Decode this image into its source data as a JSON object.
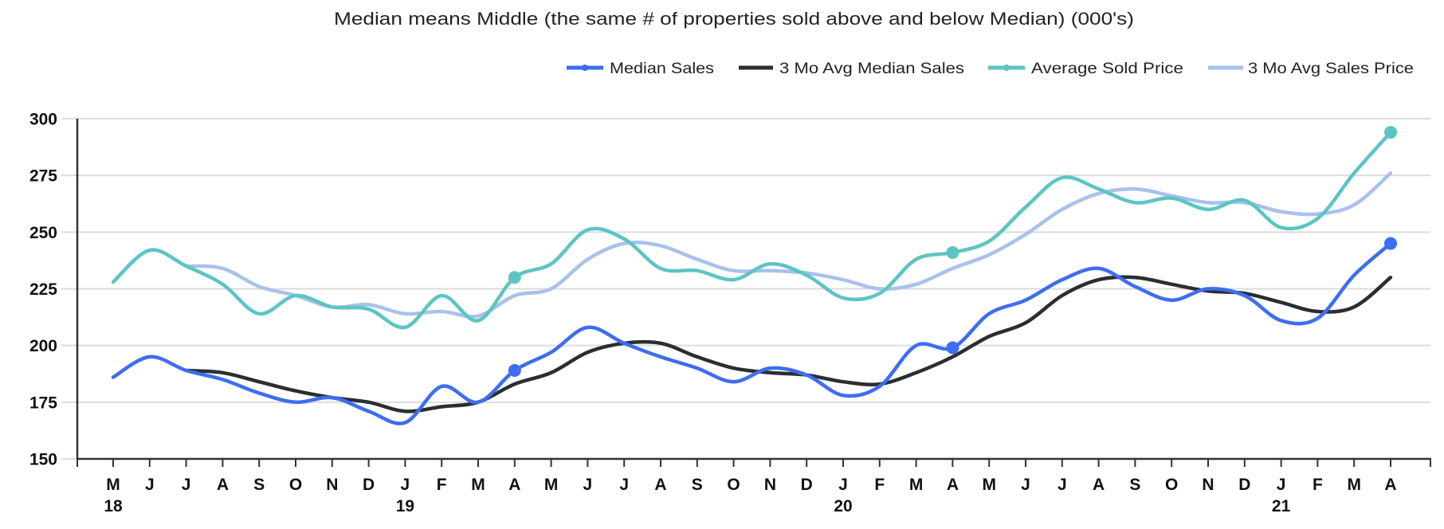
{
  "chart_data": {
    "type": "line",
    "title": "Median means Middle (the same # of properties sold above and below Median) (000's)",
    "xlabel": "",
    "ylabel": "",
    "ylim": [
      150,
      300
    ],
    "yticks": [
      "150",
      "175",
      "200",
      "225",
      "250",
      "275",
      "300"
    ],
    "grid": true,
    "legend_position": "top-right",
    "categories": [
      "M",
      "J",
      "J",
      "A",
      "S",
      "O",
      "N",
      "D",
      "J",
      "F",
      "M",
      "A",
      "M",
      "J",
      "J",
      "A",
      "S",
      "O",
      "N",
      "D",
      "J",
      "F",
      "M",
      "A",
      "M",
      "J",
      "J",
      "A",
      "S",
      "O",
      "N",
      "D",
      "J",
      "F",
      "M",
      "A"
    ],
    "year_labels": [
      {
        "index": 0,
        "label": "18"
      },
      {
        "index": 8,
        "label": "19"
      },
      {
        "index": 20,
        "label": "20"
      },
      {
        "index": 32,
        "label": "21"
      }
    ],
    "series": [
      {
        "name": "Median Sales",
        "color": "#3d6df2",
        "legend_marker": true,
        "marker_indices": [
          11,
          23,
          35
        ],
        "values": [
          186,
          195,
          189,
          185,
          179,
          175,
          177,
          171,
          166,
          182,
          175,
          189,
          197,
          208,
          201,
          195,
          190,
          184,
          190,
          187,
          178,
          182,
          200,
          199,
          214,
          220,
          229,
          234,
          226,
          220,
          225,
          222,
          211,
          212,
          231,
          245
        ]
      },
      {
        "name": "3 Mo Avg Median Sales",
        "color": "#2b2e31",
        "legend_marker": false,
        "marker_indices": [],
        "values": [
          null,
          null,
          189,
          188,
          184,
          180,
          177,
          175,
          171,
          173,
          175,
          183,
          188,
          197,
          201,
          201,
          195,
          190,
          188,
          187,
          184,
          183,
          188,
          195,
          204,
          210,
          222,
          229,
          230,
          227,
          224,
          223,
          219,
          215,
          217,
          230
        ]
      },
      {
        "name": "Average Sold Price",
        "color": "#5cc5c3",
        "legend_marker": true,
        "marker_indices": [
          11,
          23,
          35
        ],
        "values": [
          228,
          242,
          235,
          227,
          214,
          222,
          217,
          216,
          208,
          222,
          211,
          230,
          236,
          251,
          247,
          234,
          233,
          229,
          236,
          231,
          221,
          223,
          238,
          241,
          246,
          261,
          274,
          269,
          263,
          265,
          260,
          264,
          252,
          256,
          276,
          294
        ]
      },
      {
        "name": "3 Mo Avg Sales Price",
        "color": "#a9c1ec",
        "legend_marker": false,
        "marker_indices": [],
        "values": [
          null,
          null,
          235,
          234,
          226,
          222,
          217,
          218,
          214,
          215,
          213,
          222,
          225,
          238,
          245,
          244,
          238,
          233,
          233,
          232,
          229,
          225,
          227,
          234,
          240,
          249,
          260,
          267,
          269,
          266,
          263,
          263,
          259,
          258,
          262,
          276
        ]
      }
    ]
  }
}
